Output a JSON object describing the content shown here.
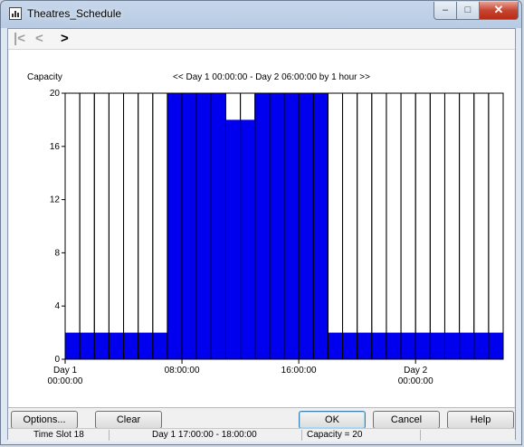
{
  "window": {
    "title": "Theatres_Schedule",
    "controls": {
      "minimize": "–",
      "maximize": "□",
      "close": "✕"
    }
  },
  "toolbar": {
    "first": "|<",
    "prev": "<",
    "next": ">"
  },
  "chart_data": {
    "type": "bar",
    "title": "<< Day 1  00:00:00 - Day 2  06:00:00  by 1 hour >>",
    "ylabel": "Capacity",
    "ylim": [
      0,
      20
    ],
    "yticks": [
      "0",
      "4",
      "8",
      "12",
      "16",
      "20"
    ],
    "xticks": [
      {
        "slot": 0,
        "label": "Day 1\n00:00:00"
      },
      {
        "slot": 8,
        "label": "08:00:00"
      },
      {
        "slot": 16,
        "label": "16:00:00"
      },
      {
        "slot": 24,
        "label": "Day 2\n00:00:00"
      }
    ],
    "capacity": 20,
    "used": [
      2,
      2,
      2,
      2,
      2,
      2,
      2,
      20,
      20,
      20,
      20,
      18,
      18,
      20,
      20,
      20,
      20,
      20,
      2,
      2,
      2,
      2,
      2,
      2,
      2,
      2,
      2,
      2,
      2,
      2
    ],
    "colors": {
      "used": "#0000ee",
      "grid": "#000000",
      "background": "#ffffff"
    }
  },
  "buttons": {
    "options": "Options...",
    "clear": "Clear",
    "ok": "OK",
    "cancel": "Cancel",
    "help": "Help"
  },
  "status": {
    "slot": "Time Slot 18",
    "range": "Day 1  17:00:00 - 18:00:00",
    "capacity": "Capacity = 20"
  }
}
